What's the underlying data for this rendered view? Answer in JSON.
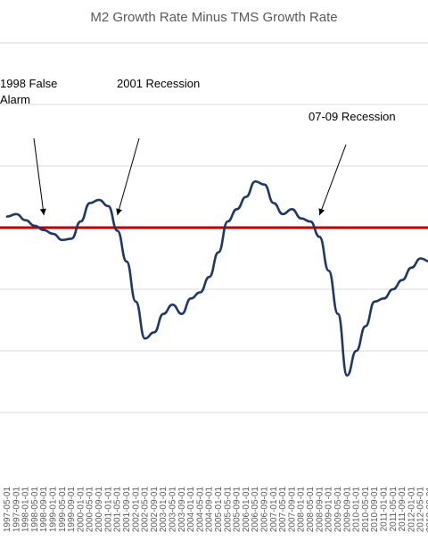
{
  "chart_data": {
    "type": "line",
    "title": "M2 Growth Rate Minus TMS Growth Rate",
    "xlabel": "",
    "ylabel": "",
    "grid": true,
    "legend": "none",
    "x_ticks": [
      "1997-05-01",
      "1997-09-01",
      "1998-01-01",
      "1998-05-01",
      "1998-09-01",
      "1999-01-01",
      "1999-05-01",
      "1999-09-01",
      "2000-01-01",
      "2000-05-01",
      "2000-09-01",
      "2001-01-01",
      "2001-05-01",
      "2001-09-01",
      "2002-01-01",
      "2002-05-01",
      "2002-09-01",
      "2003-01-01",
      "2003-05-01",
      "2003-09-01",
      "2004-01-01",
      "2004-05-01",
      "2004-09-01",
      "2005-01-01",
      "2005-05-01",
      "2005-09-01",
      "2006-01-01",
      "2006-05-01",
      "2006-09-01",
      "2007-01-01",
      "2007-05-01",
      "2007-09-01",
      "2008-01-01",
      "2008-05-01",
      "2008-09-01",
      "2009-01-01",
      "2009-05-01",
      "2009-09-01",
      "2010-01-01",
      "2010-05-01",
      "2010-09-01",
      "2011-01-01",
      "2011-05-01",
      "2011-09-01",
      "2012-01-01",
      "2012-05-01",
      "2012-09-01"
    ],
    "reference_line": {
      "y": 0,
      "color": "#c00000"
    },
    "series": [
      {
        "color": "#1f3864",
        "points": [
          [
            "1997-05-01",
            1.8
          ],
          [
            "1997-09-01",
            2.2
          ],
          [
            "1998-01-01",
            1.2
          ],
          [
            "1998-05-01",
            0.3
          ],
          [
            "1998-09-01",
            -0.4
          ],
          [
            "1999-01-01",
            -1.0
          ],
          [
            "1999-05-01",
            -2.0
          ],
          [
            "1999-09-01",
            -1.8
          ],
          [
            "2000-01-01",
            1.0
          ],
          [
            "2000-05-01",
            4.0
          ],
          [
            "2000-09-01",
            4.5
          ],
          [
            "2001-01-01",
            3.5
          ],
          [
            "2001-05-01",
            -0.5
          ],
          [
            "2001-09-01",
            -5.5
          ],
          [
            "2002-01-01",
            -12.0
          ],
          [
            "2002-05-01",
            -18.0
          ],
          [
            "2002-09-01",
            -17.0
          ],
          [
            "2003-01-01",
            -14.0
          ],
          [
            "2003-05-01",
            -12.5
          ],
          [
            "2003-09-01",
            -14.0
          ],
          [
            "2004-01-01",
            -11.5
          ],
          [
            "2004-05-01",
            -10.5
          ],
          [
            "2004-09-01",
            -8.0
          ],
          [
            "2005-01-01",
            -4.0
          ],
          [
            "2005-05-01",
            1.0
          ],
          [
            "2005-09-01",
            3.0
          ],
          [
            "2006-01-01",
            5.0
          ],
          [
            "2006-05-01",
            7.5
          ],
          [
            "2006-09-01",
            7.0
          ],
          [
            "2007-01-01",
            4.0
          ],
          [
            "2007-05-01",
            2.2
          ],
          [
            "2007-09-01",
            3.0
          ],
          [
            "2008-01-01",
            1.5
          ],
          [
            "2008-05-01",
            1.0
          ],
          [
            "2008-09-01",
            -1.5
          ],
          [
            "2009-01-01",
            -7.0
          ],
          [
            "2009-05-01",
            -14.0
          ],
          [
            "2009-09-01",
            -24.0
          ],
          [
            "2010-01-01",
            -20.0
          ],
          [
            "2010-05-01",
            -16.0
          ],
          [
            "2010-09-01",
            -12.0
          ],
          [
            "2011-01-01",
            -11.5
          ],
          [
            "2011-05-01",
            -10.0
          ],
          [
            "2011-09-01",
            -8.5
          ],
          [
            "2012-01-01",
            -6.5
          ],
          [
            "2012-05-01",
            -5.0
          ],
          [
            "2012-09-01",
            -5.5
          ]
        ]
      }
    ],
    "annotations": [
      {
        "text_lines": [
          "1998 False",
          "Alarm"
        ],
        "points_to": [
          "1998-09-01",
          0
        ]
      },
      {
        "text_lines": [
          "2001 Recession"
        ],
        "points_to": [
          "2001-05-01",
          0
        ]
      },
      {
        "text_lines": [
          "07-09 Recession"
        ],
        "points_to": [
          "2008-09-01",
          0
        ]
      }
    ]
  }
}
